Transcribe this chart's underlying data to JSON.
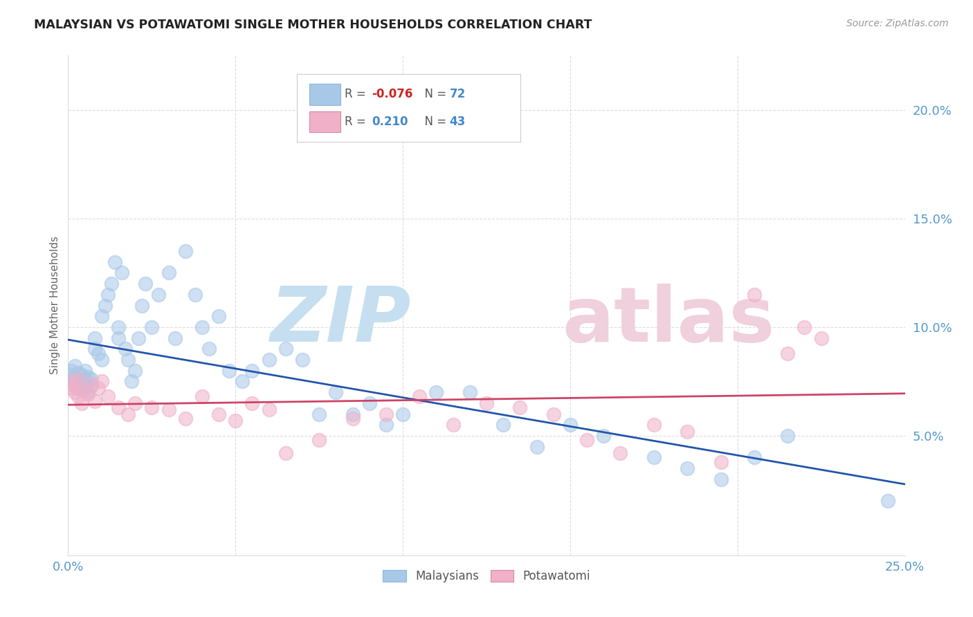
{
  "title": "MALAYSIAN VS POTAWATOMI SINGLE MOTHER HOUSEHOLDS CORRELATION CHART",
  "source": "Source: ZipAtlas.com",
  "ylabel": "Single Mother Households",
  "xlim": [
    0.0,
    0.25
  ],
  "ylim": [
    -0.005,
    0.225
  ],
  "xtick_vals": [
    0.0,
    0.05,
    0.1,
    0.15,
    0.2,
    0.25
  ],
  "ytick_vals": [
    0.05,
    0.1,
    0.15,
    0.2
  ],
  "ytick_labels": [
    "5.0%",
    "10.0%",
    "15.0%",
    "20.0%"
  ],
  "xtick_labels": [
    "0.0%",
    "",
    "",
    "",
    "",
    "25.0%"
  ],
  "legend_labels": [
    "Malaysians",
    "Potawatomi"
  ],
  "legend_r_malay": "-0.076",
  "legend_n_malay": "72",
  "legend_r_pota": "0.210",
  "legend_n_pota": "43",
  "blue_scatter_color": "#a8c8e8",
  "pink_scatter_color": "#f0b0c8",
  "blue_line_color": "#2255aa",
  "pink_line_color": "#cc4466",
  "tick_label_color": "#5599cc",
  "grid_color": "#dddddd",
  "title_color": "#222222",
  "source_color": "#999999",
  "malaysian_x": [
    0.001,
    0.001,
    0.001,
    0.002,
    0.002,
    0.002,
    0.002,
    0.003,
    0.003,
    0.003,
    0.004,
    0.004,
    0.004,
    0.005,
    0.005,
    0.005,
    0.006,
    0.006,
    0.007,
    0.007,
    0.008,
    0.008,
    0.009,
    0.01,
    0.01,
    0.011,
    0.012,
    0.013,
    0.014,
    0.015,
    0.015,
    0.016,
    0.017,
    0.018,
    0.019,
    0.02,
    0.021,
    0.022,
    0.023,
    0.025,
    0.027,
    0.03,
    0.032,
    0.035,
    0.038,
    0.04,
    0.042,
    0.045,
    0.048,
    0.052,
    0.055,
    0.06,
    0.065,
    0.07,
    0.075,
    0.08,
    0.085,
    0.09,
    0.095,
    0.1,
    0.11,
    0.12,
    0.13,
    0.14,
    0.15,
    0.16,
    0.175,
    0.185,
    0.195,
    0.205,
    0.215,
    0.245
  ],
  "malaysian_y": [
    0.076,
    0.078,
    0.08,
    0.075,
    0.077,
    0.082,
    0.073,
    0.079,
    0.072,
    0.074,
    0.076,
    0.078,
    0.071,
    0.075,
    0.08,
    0.073,
    0.077,
    0.07,
    0.076,
    0.073,
    0.09,
    0.095,
    0.088,
    0.085,
    0.105,
    0.11,
    0.115,
    0.12,
    0.13,
    0.1,
    0.095,
    0.125,
    0.09,
    0.085,
    0.075,
    0.08,
    0.095,
    0.11,
    0.12,
    0.1,
    0.115,
    0.125,
    0.095,
    0.135,
    0.115,
    0.1,
    0.09,
    0.105,
    0.08,
    0.075,
    0.08,
    0.085,
    0.09,
    0.085,
    0.06,
    0.07,
    0.06,
    0.065,
    0.055,
    0.06,
    0.07,
    0.07,
    0.055,
    0.045,
    0.055,
    0.05,
    0.04,
    0.035,
    0.03,
    0.04,
    0.05,
    0.02
  ],
  "potawatomi_x": [
    0.001,
    0.001,
    0.002,
    0.002,
    0.003,
    0.003,
    0.004,
    0.005,
    0.006,
    0.007,
    0.008,
    0.009,
    0.01,
    0.012,
    0.015,
    0.018,
    0.02,
    0.025,
    0.03,
    0.035,
    0.04,
    0.045,
    0.05,
    0.055,
    0.06,
    0.065,
    0.075,
    0.085,
    0.095,
    0.105,
    0.115,
    0.125,
    0.135,
    0.145,
    0.155,
    0.165,
    0.175,
    0.185,
    0.195,
    0.205,
    0.215,
    0.22,
    0.225
  ],
  "potawatomi_y": [
    0.075,
    0.072,
    0.07,
    0.073,
    0.068,
    0.076,
    0.065,
    0.071,
    0.069,
    0.074,
    0.066,
    0.072,
    0.075,
    0.068,
    0.063,
    0.06,
    0.065,
    0.063,
    0.062,
    0.058,
    0.068,
    0.06,
    0.057,
    0.065,
    0.062,
    0.042,
    0.048,
    0.058,
    0.06,
    0.068,
    0.055,
    0.065,
    0.063,
    0.06,
    0.048,
    0.042,
    0.055,
    0.052,
    0.038,
    0.115,
    0.088,
    0.1,
    0.095
  ]
}
